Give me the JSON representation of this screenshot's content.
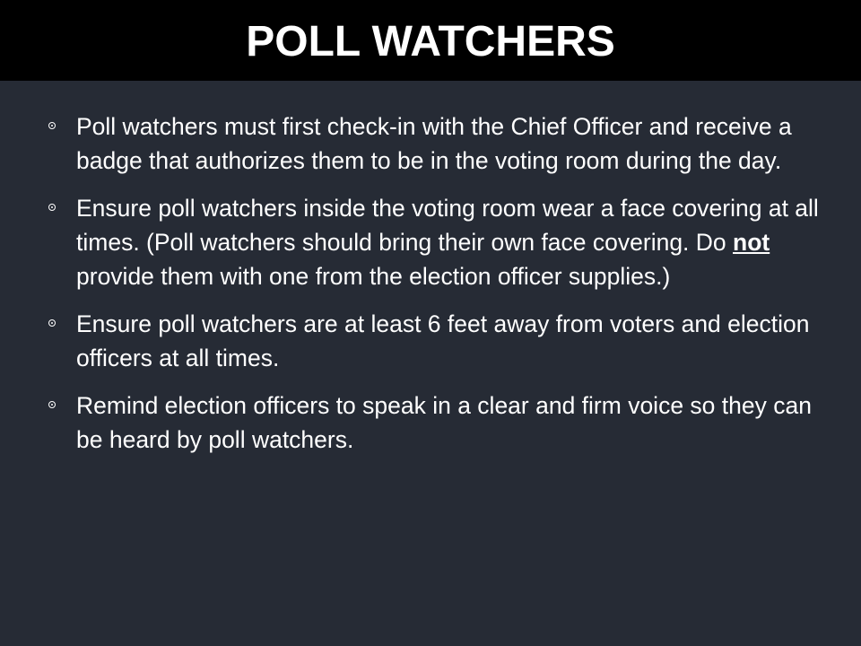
{
  "title": "POLL WATCHERS",
  "bullets": [
    {
      "text": "Poll watchers must first check-in with the Chief Officer and receive a badge that authorizes them to be in the voting room during the day."
    },
    {
      "before": "Ensure poll watchers inside the voting room wear a face covering at all times. (Poll watchers should bring their own face covering. Do ",
      "emphasis": "not",
      "after": " provide them with one from the election officer supplies.)"
    },
    {
      "text": "Ensure poll watchers are at least 6 feet away from voters and election officers at all times."
    },
    {
      "text": "Remind election officers to speak in a clear and firm voice so they can be heard by poll watchers."
    }
  ],
  "colors": {
    "background": "#262b35",
    "title_bar": "#000000",
    "text": "#ffffff"
  }
}
